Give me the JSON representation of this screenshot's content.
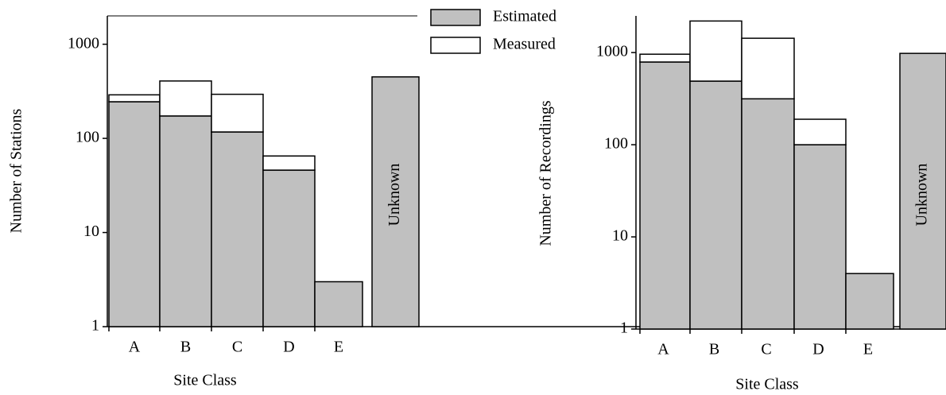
{
  "chart_data": [
    {
      "type": "bar",
      "stacked": true,
      "log_y": true,
      "x_label": "Site Class",
      "y_label": "Number of Stations",
      "categories": [
        "A",
        "B",
        "C",
        "D",
        "E",
        "Unknown"
      ],
      "series": [
        {
          "name": "Estimated",
          "color": "#c0c0c0",
          "values": [
            245,
            173,
            117,
            46,
            3,
            450
          ]
        },
        {
          "name": "Measured",
          "color": "#ffffff",
          "values": [
            45,
            234,
            177,
            19,
            0,
            0
          ]
        }
      ],
      "ylim": [
        1,
        2000
      ],
      "yticks": [
        1,
        10,
        100,
        1000
      ]
    },
    {
      "type": "bar",
      "stacked": true,
      "log_y": true,
      "x_label": "Site Class",
      "y_label": "Number of Recordings",
      "categories": [
        "A",
        "B",
        "C",
        "D",
        "E",
        "Unknown"
      ],
      "series": [
        {
          "color": "#c0c0c0",
          "values": [
            790,
            490,
            315,
            100,
            4,
            980
          ]
        },
        {
          "color": "#ffffff",
          "values": [
            170,
            1710,
            1115,
            89,
            0,
            0
          ]
        }
      ],
      "ylim": [
        1,
        2500
      ],
      "yticks": [
        1,
        10,
        100,
        1000
      ]
    }
  ]
}
